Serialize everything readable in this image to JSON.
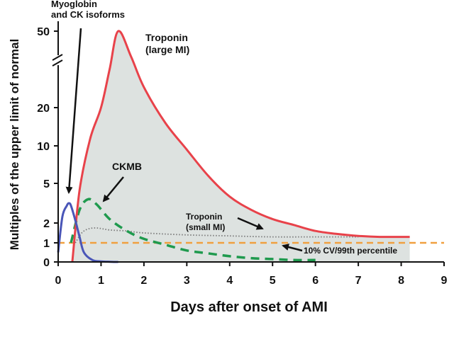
{
  "chart_data": {
    "type": "line",
    "title": "",
    "xlabel": "Days after onset of AMI",
    "ylabel": "Multiples of the upper limit of normal",
    "xlim": [
      0,
      9
    ],
    "ylim": [
      0,
      50
    ],
    "x_ticks": [
      "0",
      "1",
      "2",
      "3",
      "4",
      "5",
      "6",
      "7",
      "8",
      "9"
    ],
    "y_ticks": [
      "0",
      "1",
      "2",
      "5",
      "10",
      "20",
      "50"
    ],
    "y_scale": "nonlinear, broken axis above 20",
    "grid": false,
    "shaded_region": "under troponin (large MI) curve",
    "colors": {
      "myoglobin": "#4a56b8",
      "troponin_large": "#e8424a",
      "ckmb": "#1f9a4e",
      "troponin_small": "#7a7a7a",
      "reference": "#f0a040",
      "fill": "#dde2e0"
    },
    "annotations": {
      "myoglobin": "Myoglobin\nand CK isoforms",
      "troponin_large": "Troponin\n(large MI)",
      "ckmb": "CKMB",
      "troponin_small": "Troponin\n(small MI)",
      "reference": "10% CV/99th percentile"
    },
    "series": [
      {
        "key": "troponin_large",
        "style": "solid",
        "x": [
          0.33,
          0.5,
          0.75,
          1.0,
          1.2,
          1.4,
          1.7,
          2.0,
          2.5,
          3.0,
          3.5,
          4.0,
          4.5,
          5.0,
          5.5,
          6.0,
          6.5,
          7.0,
          7.5,
          8.0,
          8.2
        ],
        "y": [
          0,
          4.5,
          12,
          20,
          35,
          50,
          40,
          28,
          16,
          9.5,
          6,
          4,
          3,
          2.3,
          1.9,
          1.6,
          1.45,
          1.35,
          1.3,
          1.3,
          1.3
        ]
      },
      {
        "key": "myoglobin",
        "style": "solid",
        "x": [
          0.0,
          0.1,
          0.2,
          0.25,
          0.3,
          0.4,
          0.5,
          0.6,
          0.8,
          1.0,
          1.2,
          1.4
        ],
        "y": [
          0.5,
          2.5,
          3.3,
          3.5,
          3.3,
          2.2,
          1.3,
          0.5,
          0.1,
          0.03,
          0.01,
          0
        ]
      },
      {
        "key": "ckmb",
        "style": "dashed",
        "x": [
          0.3,
          0.5,
          0.7,
          0.9,
          1.2,
          1.6,
          2.0,
          2.5,
          3.0,
          3.5,
          4.0,
          4.5,
          5.0,
          5.5,
          6.0
        ],
        "y": [
          1.0,
          3.0,
          3.8,
          3.4,
          2.3,
          1.6,
          1.2,
          0.9,
          0.6,
          0.45,
          0.3,
          0.2,
          0.15,
          0.1,
          0.1
        ]
      },
      {
        "key": "troponin_small",
        "style": "dotted",
        "x": [
          0.4,
          0.55,
          0.7,
          0.9,
          1.2,
          1.6,
          2.0,
          3.0,
          4.0,
          5.0,
          6.0,
          7.0
        ],
        "y": [
          1.0,
          1.5,
          1.7,
          1.75,
          1.65,
          1.6,
          1.5,
          1.4,
          1.35,
          1.3,
          1.3,
          1.3
        ]
      },
      {
        "key": "reference",
        "style": "dashed",
        "x": [
          0,
          9
        ],
        "y": [
          1,
          1
        ]
      }
    ]
  }
}
